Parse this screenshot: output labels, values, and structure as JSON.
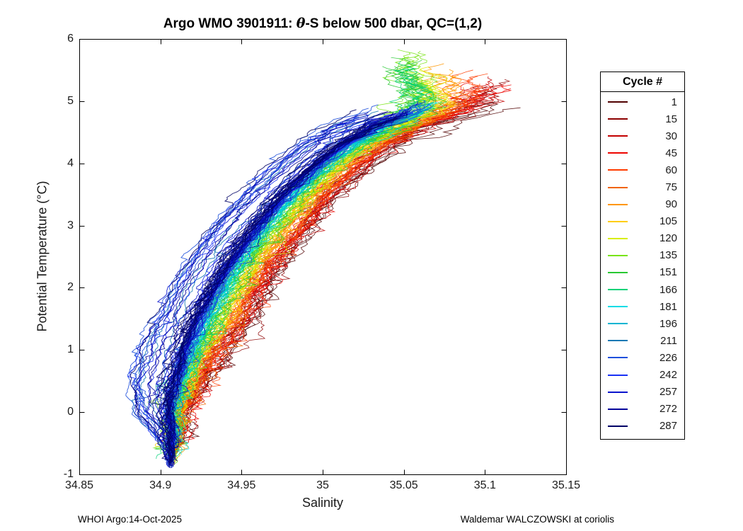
{
  "chart": {
    "title_prefix": "Argo WMO 3901911: ",
    "title_theta": "θ",
    "title_suffix": "-S below 500 dbar,  QC=(1,2)",
    "xlabel": "Salinity",
    "ylabel": "Potential Temperature (°C)",
    "legend_title": "Cycle #"
  },
  "footer": {
    "left": "WHOI Argo:14-Oct-2025",
    "right": "Waldemar WALCZOWSKI at coriolis"
  },
  "chart_data": {
    "type": "line",
    "title": "Argo WMO 3901911: θ-S below 500 dbar,  QC=(1,2)",
    "xlabel": "Salinity",
    "ylabel": "Potential Temperature (°C)",
    "xlim": [
      34.85,
      35.15
    ],
    "ylim": [
      -1,
      6
    ],
    "xticks": [
      34.85,
      34.9,
      34.95,
      35,
      35.05,
      35.1,
      35.15
    ],
    "xtick_labels": [
      "34.85",
      "34.9",
      "34.95",
      "35",
      "35.05",
      "35.1",
      "35.15"
    ],
    "yticks": [
      -1,
      0,
      1,
      2,
      3,
      4,
      5,
      6
    ],
    "ytick_labels": [
      "-1",
      "0",
      "1",
      "2",
      "3",
      "4",
      "5",
      "6"
    ],
    "grid": false,
    "legend_title": "Cycle #",
    "legend_position": "right-outside",
    "backbone_theta_salinity": [
      [
        -0.9,
        34.906
      ],
      [
        -0.6,
        34.907
      ],
      [
        -0.3,
        34.906
      ],
      [
        0,
        34.904
      ],
      [
        0.3,
        34.906
      ],
      [
        0.6,
        34.909
      ],
      [
        1,
        34.913
      ],
      [
        1.5,
        34.921
      ],
      [
        2,
        34.931
      ],
      [
        2.5,
        34.943
      ],
      [
        3,
        34.957
      ],
      [
        3.5,
        34.974
      ],
      [
        4,
        34.995
      ],
      [
        4.3,
        35.01
      ],
      [
        4.6,
        35.03
      ],
      [
        4.8,
        35.05
      ],
      [
        5,
        35.06
      ],
      [
        5.2,
        35.065
      ],
      [
        5.5,
        35.068
      ],
      [
        5.8,
        35.07
      ]
    ],
    "profile_settings": {
      "theta_step": 0.03,
      "offset_taper": {
        "start": -0.75,
        "span": 2.2,
        "min": 0.04
      },
      "top_noise_boost_above_theta": 4.35,
      "top_noise_multiplier": 2.6
    },
    "series": [
      {
        "cycle": 1,
        "label": "1",
        "color": "#500000",
        "s_offset": 0.034,
        "theta_top": 5.0,
        "noise": 0.0045,
        "repeats": 6,
        "jitter": 0.005,
        "top_bend": 0.01
      },
      {
        "cycle": 15,
        "label": "15",
        "color": "#8c0000",
        "s_offset": 0.032,
        "theta_top": 5.2,
        "noise": 0.0045,
        "repeats": 6,
        "jitter": 0.005,
        "top_bend": 0.012
      },
      {
        "cycle": 30,
        "label": "30",
        "color": "#c30000",
        "s_offset": 0.03,
        "theta_top": 5.25,
        "noise": 0.0045,
        "repeats": 6,
        "jitter": 0.005,
        "top_bend": 0.012
      },
      {
        "cycle": 45,
        "label": "45",
        "color": "#ee0500",
        "s_offset": 0.028,
        "theta_top": 5.15,
        "noise": 0.0045,
        "repeats": 6,
        "jitter": 0.005,
        "top_bend": 0.01
      },
      {
        "cycle": 60,
        "label": "60",
        "color": "#ff3c00",
        "s_offset": 0.026,
        "theta_top": 5.35,
        "noise": 0.0042,
        "repeats": 6,
        "jitter": 0.005,
        "top_bend": 0.0
      },
      {
        "cycle": 75,
        "label": "75",
        "color": "#f06400",
        "s_offset": 0.024,
        "theta_top": 5.1,
        "noise": 0.004,
        "repeats": 7,
        "jitter": 0.004,
        "top_bend": -0.01
      },
      {
        "cycle": 90,
        "label": "90",
        "color": "#ff9600",
        "s_offset": 0.021,
        "theta_top": 5.45,
        "noise": 0.004,
        "repeats": 7,
        "jitter": 0.004,
        "top_bend": -0.015
      },
      {
        "cycle": 105,
        "label": "105",
        "color": "#ffcd00",
        "s_offset": 0.019,
        "theta_top": 5.2,
        "noise": 0.004,
        "repeats": 7,
        "jitter": 0.004,
        "top_bend": -0.015
      },
      {
        "cycle": 120,
        "label": "120",
        "color": "#d8ee00",
        "s_offset": 0.016,
        "theta_top": 5.4,
        "noise": 0.004,
        "repeats": 7,
        "jitter": 0.004,
        "top_bend": -0.025
      },
      {
        "cycle": 135,
        "label": "135",
        "color": "#78e414",
        "s_offset": 0.014,
        "theta_top": 5.75,
        "noise": 0.0045,
        "repeats": 7,
        "jitter": 0.004,
        "top_bend": -0.03
      },
      {
        "cycle": 151,
        "label": "151",
        "color": "#28c832",
        "s_offset": 0.012,
        "theta_top": 5.6,
        "noise": 0.0045,
        "repeats": 7,
        "jitter": 0.004,
        "top_bend": -0.03
      },
      {
        "cycle": 166,
        "label": "166",
        "color": "#00d278",
        "s_offset": 0.01,
        "theta_top": 5.5,
        "noise": 0.004,
        "repeats": 7,
        "jitter": 0.004,
        "top_bend": -0.028
      },
      {
        "cycle": 181,
        "label": "181",
        "color": "#00dce6",
        "s_offset": 0.008,
        "theta_top": 4.9,
        "noise": 0.0026,
        "repeats": 10,
        "jitter": 0.004,
        "top_bend": 0
      },
      {
        "cycle": 196,
        "label": "196",
        "color": "#00b4d2",
        "s_offset": 0.006,
        "theta_top": 4.85,
        "noise": 0.0026,
        "repeats": 10,
        "jitter": 0.004,
        "top_bend": 0
      },
      {
        "cycle": 211,
        "label": "211",
        "color": "#1478b4",
        "s_offset": 0.005,
        "theta_top": 4.8,
        "noise": 0.0024,
        "repeats": 10,
        "jitter": 0.0035,
        "top_bend": 0,
        "left_outliers": true
      },
      {
        "cycle": 226,
        "label": "226",
        "color": "#1e50dc",
        "s_offset": 0.004,
        "theta_top": 4.85,
        "noise": 0.0024,
        "repeats": 12,
        "jitter": 0.0035,
        "top_bend": 0,
        "left_outliers": true
      },
      {
        "cycle": 242,
        "label": "242",
        "color": "#1930f5",
        "s_offset": 0.003,
        "theta_top": 4.8,
        "noise": 0.0022,
        "repeats": 12,
        "jitter": 0.0035,
        "top_bend": 0,
        "left_outliers": true
      },
      {
        "cycle": 257,
        "label": "257",
        "color": "#0a14cd",
        "s_offset": 0.002,
        "theta_top": 4.85,
        "noise": 0.0022,
        "repeats": 12,
        "jitter": 0.0035,
        "top_bend": 0,
        "left_outliers": true,
        "deep": true
      },
      {
        "cycle": 272,
        "label": "272",
        "color": "#05059b",
        "s_offset": 0.001,
        "theta_top": 4.8,
        "noise": 0.0024,
        "repeats": 12,
        "jitter": 0.0035,
        "top_bend": 0,
        "left_outliers": true,
        "deep": true
      },
      {
        "cycle": 287,
        "label": "287",
        "color": "#020366",
        "s_offset": 0.0,
        "theta_top": 4.75,
        "noise": 0.0024,
        "repeats": 12,
        "jitter": 0.0035,
        "top_bend": 0,
        "left_outliers": true,
        "deep": true
      }
    ]
  }
}
